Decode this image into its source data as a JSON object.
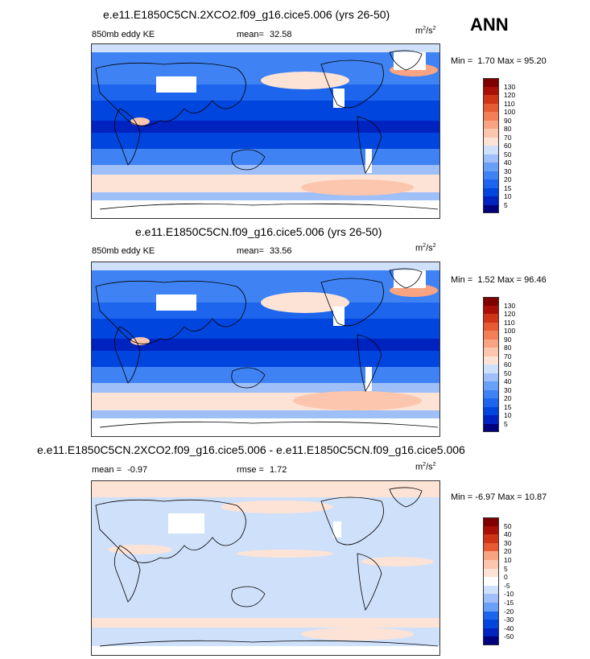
{
  "season": "ANN",
  "palette_ke": [
    "#00007d",
    "#0022bf",
    "#0045dd",
    "#1c65ec",
    "#3f82f3",
    "#68a0f7",
    "#9ebff8",
    "#cfe0fa",
    "#ffffff",
    "#fde3d6",
    "#fbc6ad",
    "#f8a482",
    "#f27f57",
    "#e65a34",
    "#cd3418",
    "#a80f07",
    "#7f0000"
  ],
  "palette_diff": [
    "#00007d",
    "#0022bf",
    "#0045dd",
    "#1c65ec",
    "#3f82f3",
    "#68a0f7",
    "#9ebff8",
    "#cfe0fa",
    "#ffffff",
    "#fde3d6",
    "#fbc6ad",
    "#f8a482",
    "#f27f57",
    "#e65a34",
    "#cd3418",
    "#a80f07",
    "#7f0000"
  ],
  "panels": [
    {
      "title": "e.e11.E1850C5CN.2XCO2.f09_g16.cice5.006 (yrs 26-50)",
      "left_label": "850mb eddy KE",
      "stat_label": "mean=",
      "stat_value": "32.58",
      "units": "m²/s²",
      "min_label": "Min =",
      "min_value": "1.70",
      "max_label": "Max =",
      "max_value": "95.20",
      "levels": [
        "130",
        "120",
        "110",
        "100",
        "90",
        "80",
        "70",
        "60",
        "50",
        "40",
        "30",
        "20",
        "15",
        "10",
        "5"
      ]
    },
    {
      "title": "e.e11.E1850C5CN.f09_g16.cice5.006 (yrs 26-50)",
      "left_label": "850mb eddy KE",
      "stat_label": "mean=",
      "stat_value": "33.56",
      "units": "m²/s²",
      "min_label": "Min =",
      "min_value": "1.52",
      "max_label": "Max =",
      "max_value": "96.46",
      "levels": [
        "130",
        "120",
        "110",
        "100",
        "90",
        "80",
        "70",
        "60",
        "50",
        "40",
        "30",
        "20",
        "15",
        "10",
        "5"
      ]
    },
    {
      "title": "e.e11.E1850C5CN.2XCO2.f09_g16.cice5.006 - e.e11.E1850C5CN.f09_g16.cice5.006",
      "left_label": "mean =",
      "left_value": "-0.97",
      "stat_label": "rmse =",
      "stat_value": "1.72",
      "units": "m²/s²",
      "min_label": "Min =",
      "min_value": "-6.97",
      "max_label": "Max =",
      "max_value": "10.87",
      "levels": [
        "50",
        "40",
        "30",
        "20",
        "10",
        "5",
        "0",
        "-5",
        "-10",
        "-15",
        "-20",
        "-30",
        "-40",
        "-50"
      ]
    }
  ]
}
